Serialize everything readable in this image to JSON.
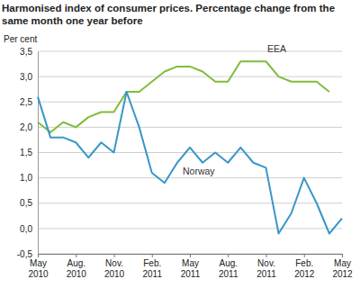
{
  "chart_data": {
    "type": "line",
    "title": "Harmonised index of consumer prices. Percentage change from the same month one year before",
    "y_label": "Per cent",
    "categories": [
      "May 2010",
      null,
      null,
      "Aug. 2010",
      null,
      null,
      "Nov. 2010",
      null,
      null,
      "Feb. 2011",
      null,
      null,
      "May 2011",
      null,
      null,
      "Aug. 2011",
      null,
      null,
      "Nov. 2011",
      null,
      null,
      "Feb. 2012",
      null,
      null,
      "May 2012"
    ],
    "series": [
      {
        "name": "EEA",
        "color": "#80bc3b",
        "values": [
          2.1,
          1.9,
          2.1,
          2.0,
          2.2,
          2.3,
          2.3,
          2.7,
          2.7,
          2.9,
          3.1,
          3.2,
          3.2,
          3.1,
          2.9,
          2.9,
          3.3,
          3.3,
          3.3,
          3.0,
          2.9,
          2.9,
          2.9,
          2.7,
          null
        ]
      },
      {
        "name": "Norway",
        "color": "#3996c8",
        "values": [
          2.6,
          1.8,
          1.8,
          1.7,
          1.4,
          1.7,
          1.5,
          2.7,
          2.0,
          1.1,
          0.9,
          1.3,
          1.6,
          1.3,
          1.5,
          1.3,
          1.6,
          1.3,
          1.2,
          -0.1,
          0.3,
          1.0,
          0.5,
          -0.1,
          0.2
        ]
      }
    ],
    "ylim": [
      -0.5,
      3.5
    ],
    "yticks": [
      {
        "value": -0.5,
        "label": "-0,5"
      },
      {
        "value": 0,
        "label": "0,0"
      },
      {
        "value": 0.5,
        "label": "0,5"
      },
      {
        "value": 1,
        "label": "1,0"
      },
      {
        "value": 1.5,
        "label": "1,5"
      },
      {
        "value": 2,
        "label": "2,0"
      },
      {
        "value": 2.5,
        "label": "2,5"
      },
      {
        "value": 3,
        "label": "3,0"
      },
      {
        "value": 3.5,
        "label": "3,5"
      }
    ],
    "grid": true
  }
}
